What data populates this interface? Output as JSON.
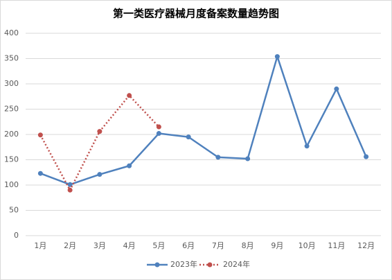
{
  "chart_data": {
    "type": "line",
    "title": "第一类医疗器械月度备案数量趋势图",
    "categories": [
      "1月",
      "2月",
      "3月",
      "4月",
      "5月",
      "6月",
      "7月",
      "8月",
      "9月",
      "10月",
      "11月",
      "12月"
    ],
    "series": [
      {
        "name": "2023年",
        "color": "#4f81bd",
        "dash": false,
        "values": [
          123,
          101,
          121,
          138,
          202,
          195,
          155,
          152,
          354,
          177,
          290,
          156
        ]
      },
      {
        "name": "2024年",
        "color": "#c0504d",
        "dash": true,
        "values": [
          199,
          90,
          206,
          277,
          215,
          null,
          null,
          null,
          null,
          null,
          null,
          null
        ]
      }
    ],
    "ylim": [
      0,
      400
    ],
    "yticks": [
      0,
      50,
      100,
      150,
      200,
      250,
      300,
      350,
      400
    ],
    "grid": true,
    "legend": "bottom"
  }
}
